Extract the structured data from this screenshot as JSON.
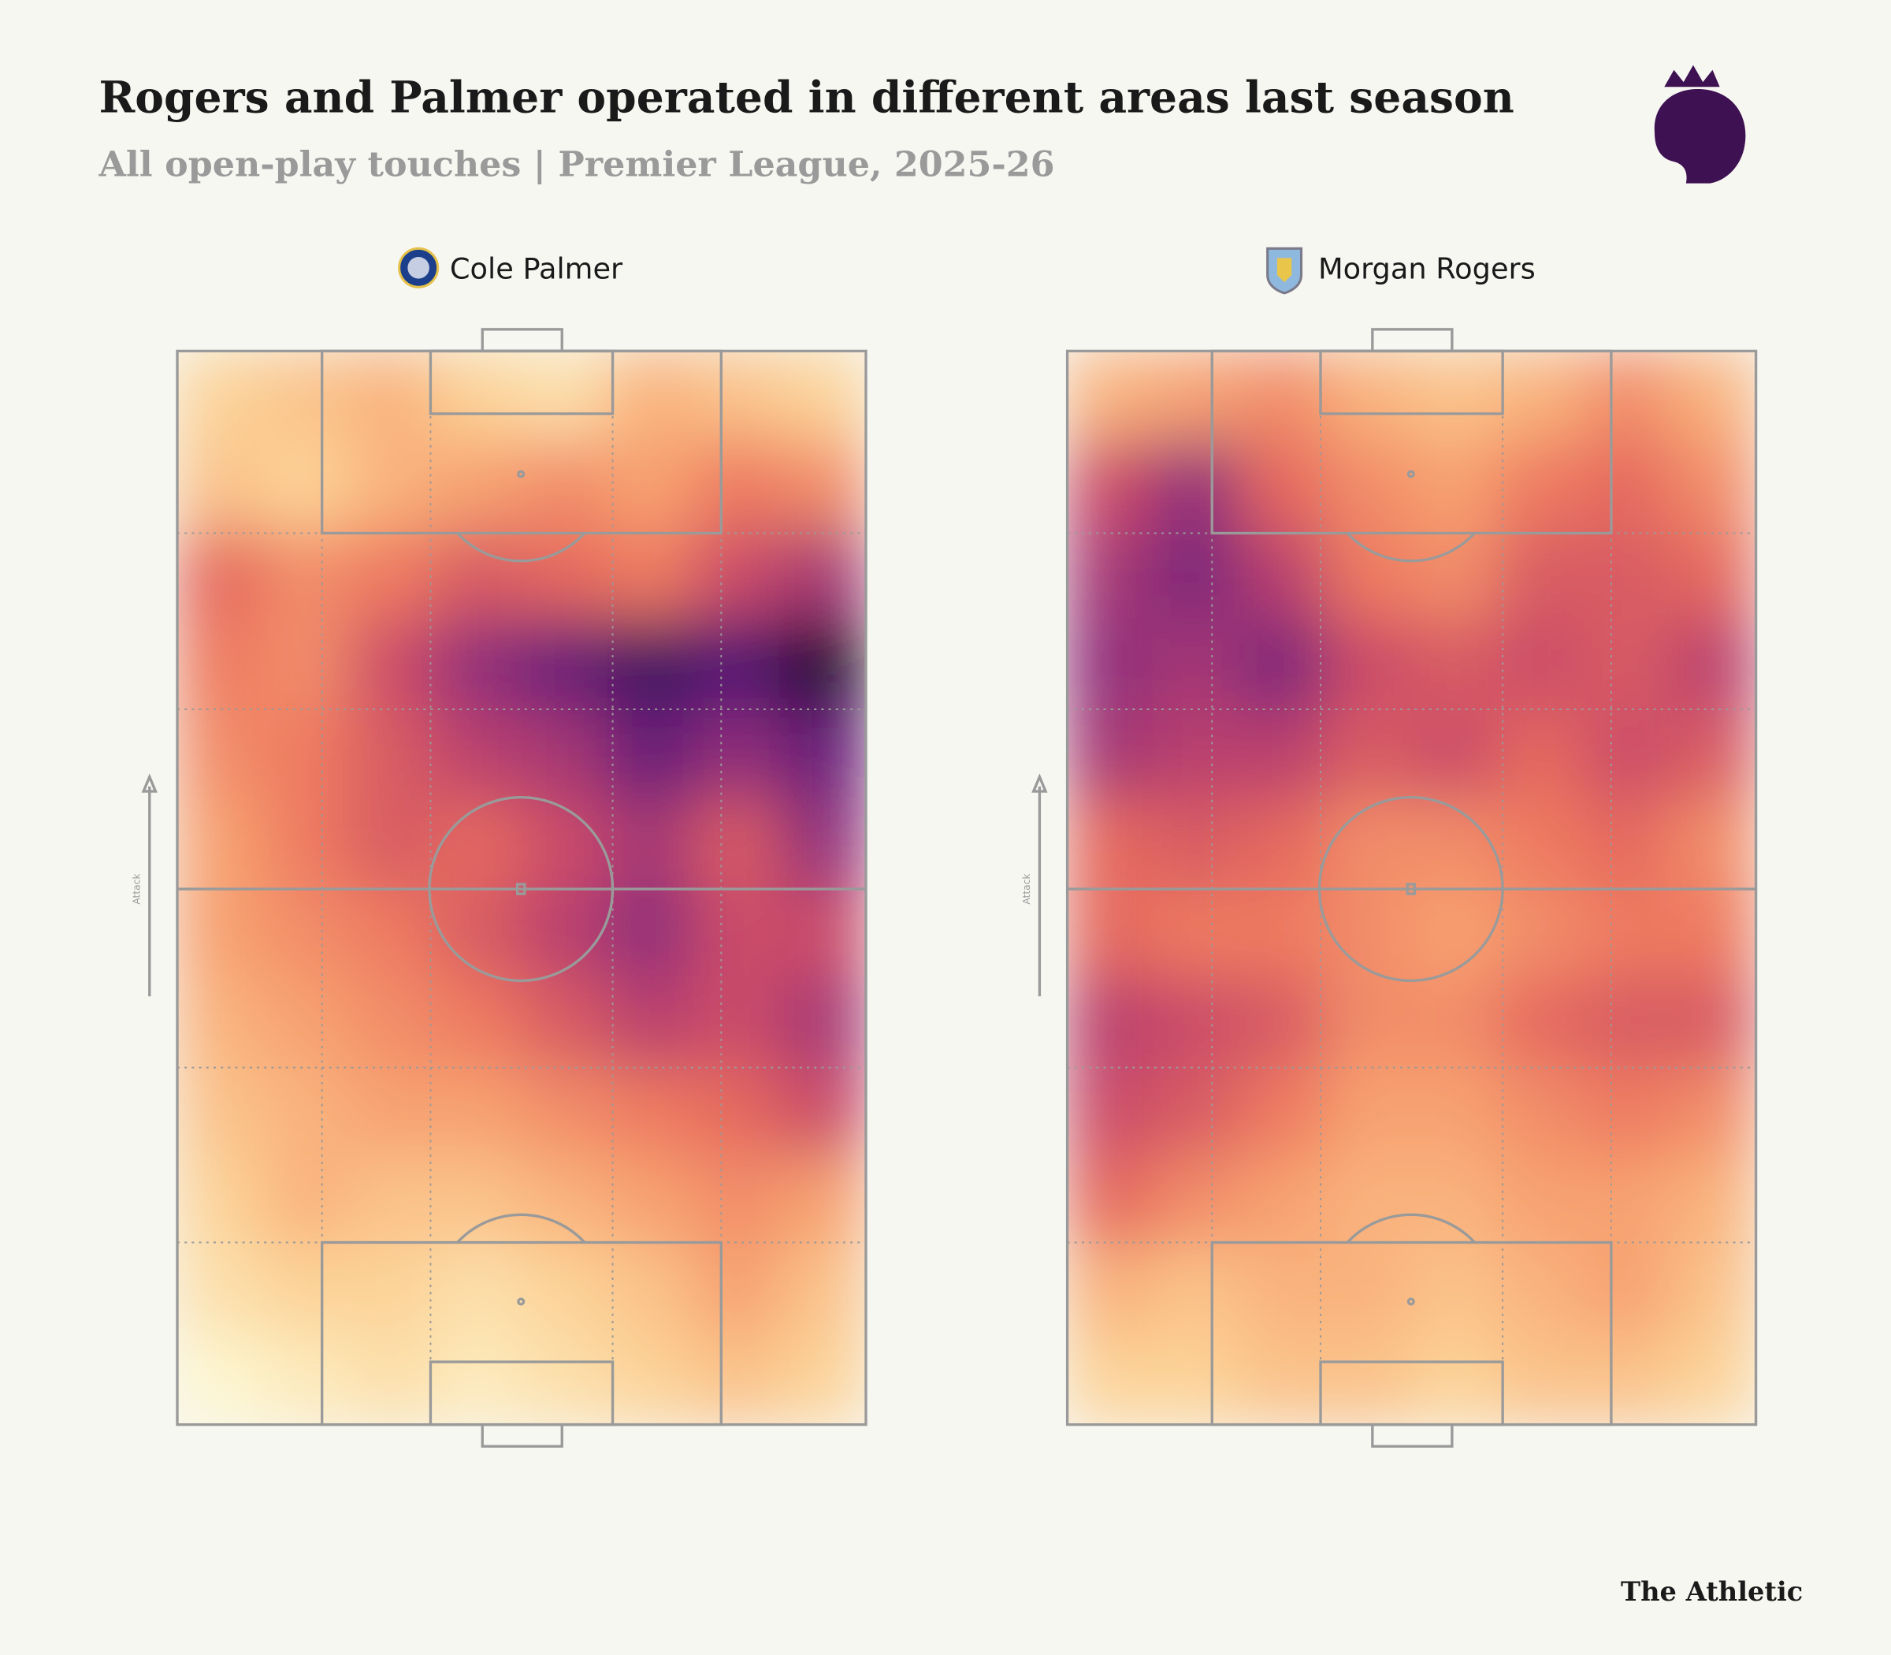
{
  "title": "Rogers and Palmer operated in different areas last season",
  "subtitle": "All open-play touches | Premier League, 2025-26",
  "source": "The Athletic",
  "chart_data": [
    {
      "type": "heatmap",
      "title": "Cole Palmer",
      "axis_label": "Attack",
      "zlim": [
        0,
        100
      ],
      "colors": [
        "#fdf6cf",
        "#fcd59a",
        "#f8a673",
        "#eb6f5c",
        "#c5466b",
        "#8a2c7c",
        "#4e1775",
        "#1a0a2c"
      ],
      "grid": [
        [
          15,
          20,
          25,
          15,
          10,
          25,
          20,
          15
        ],
        [
          20,
          15,
          25,
          30,
          35,
          30,
          40,
          35
        ],
        [
          45,
          35,
          40,
          50,
          45,
          40,
          55,
          65
        ],
        [
          40,
          35,
          55,
          70,
          80,
          90,
          85,
          100
        ],
        [
          35,
          40,
          50,
          60,
          65,
          80,
          70,
          80
        ],
        [
          30,
          40,
          50,
          45,
          55,
          65,
          50,
          70
        ],
        [
          30,
          35,
          40,
          50,
          60,
          70,
          55,
          55
        ],
        [
          25,
          30,
          35,
          40,
          50,
          60,
          55,
          65
        ],
        [
          20,
          25,
          30,
          30,
          35,
          40,
          45,
          55
        ],
        [
          15,
          25,
          20,
          20,
          25,
          30,
          35,
          30
        ],
        [
          10,
          15,
          15,
          10,
          15,
          20,
          30,
          20
        ],
        [
          0,
          5,
          10,
          5,
          10,
          15,
          20,
          15
        ]
      ]
    },
    {
      "type": "heatmap",
      "title": "Morgan Rogers",
      "axis_label": "Attack",
      "zlim": [
        0,
        100
      ],
      "colors": [
        "#fdf6cf",
        "#fcd59a",
        "#f8a673",
        "#eb6f5c",
        "#c5466b",
        "#8a2c7c",
        "#4e1775",
        "#1a0a2c"
      ],
      "grid": [
        [
          25,
          30,
          35,
          25,
          20,
          25,
          35,
          25
        ],
        [
          55,
          70,
          45,
          35,
          30,
          40,
          45,
          35
        ],
        [
          65,
          75,
          60,
          40,
          35,
          50,
          50,
          45
        ],
        [
          70,
          65,
          75,
          55,
          50,
          55,
          50,
          60
        ],
        [
          65,
          60,
          60,
          50,
          55,
          45,
          55,
          50
        ],
        [
          45,
          50,
          45,
          35,
          35,
          40,
          45,
          35
        ],
        [
          45,
          40,
          40,
          35,
          30,
          35,
          40,
          40
        ],
        [
          60,
          55,
          50,
          35,
          35,
          45,
          50,
          50
        ],
        [
          55,
          50,
          40,
          30,
          30,
          35,
          40,
          35
        ],
        [
          45,
          35,
          30,
          25,
          25,
          30,
          30,
          25
        ],
        [
          25,
          20,
          25,
          25,
          20,
          25,
          30,
          20
        ],
        [
          15,
          15,
          20,
          20,
          15,
          20,
          20,
          15
        ]
      ]
    }
  ]
}
